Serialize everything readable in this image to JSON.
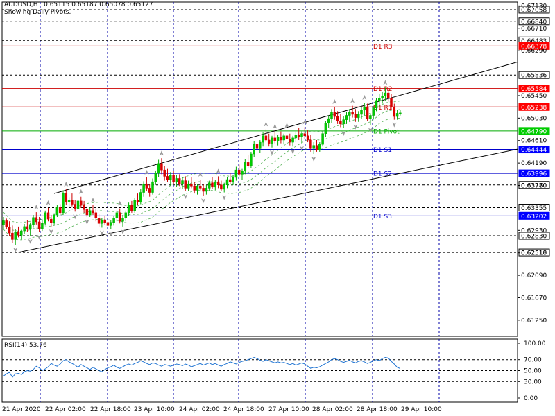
{
  "header": {
    "symbol_line": "AUDUSD,H1  0.65115 0.65187 0.65078 0.65127",
    "subtitle": "Showing Daily Pivots."
  },
  "chart_data": {
    "type": "candlestick",
    "symbol": "AUDUSD",
    "timeframe": "H1",
    "ohlc_current": {
      "open": 0.65115,
      "high": 0.65187,
      "low": 0.65078,
      "close": 0.65127
    },
    "price_ticks": [
      "0.67130",
      "0.66710",
      "0.66290",
      "0.65450",
      "0.65030",
      "0.64610",
      "0.64190",
      "0.63770",
      "0.62930",
      "0.62510",
      "0.62090",
      "0.61670",
      "0.61250"
    ],
    "price_tick_values": [
      0.6713,
      0.6671,
      0.6629,
      0.6545,
      0.6503,
      0.6461,
      0.6419,
      0.6377,
      0.6293,
      0.6251,
      0.6209,
      0.6167,
      0.6125
    ],
    "x_ticks": [
      "21 Apr 2020",
      "22 Apr 02:00",
      "22 Apr 18:00",
      "23 Apr 10:00",
      "24 Apr 02:00",
      "24 Apr 18:00",
      "27 Apr 10:00",
      "28 Apr 02:00",
      "28 Apr 18:00",
      "29 Apr 10:00"
    ],
    "price_levels": [
      {
        "label": "0.67058",
        "price": 0.67058,
        "color": "#000000",
        "style": "dashed",
        "box": "white"
      },
      {
        "label": "0.66840",
        "price": 0.6684,
        "color": "#000000",
        "style": "dashed",
        "box": "white"
      },
      {
        "label": "0.66483",
        "price": 0.66483,
        "color": "#000000",
        "style": "dashed",
        "box": "white"
      },
      {
        "label": "0.66378",
        "price": 0.66378,
        "color": "#cc0000",
        "style": "solid",
        "box": "red",
        "pivot": "D1 R3"
      },
      {
        "label": "0.65836",
        "price": 0.65836,
        "color": "#000000",
        "style": "dashed",
        "box": "white"
      },
      {
        "label": "0.65584",
        "price": 0.65584,
        "color": "#cc0000",
        "style": "solid",
        "box": "red",
        "pivot": "D1 R2"
      },
      {
        "label": "0.65238",
        "price": 0.65238,
        "color": "#cc0000",
        "style": "solid",
        "box": "red",
        "pivot": "D1 R1"
      },
      {
        "label": "0.64790",
        "price": 0.6479,
        "color": "#00aa00",
        "style": "solid",
        "box": "green",
        "pivot": "D1 Pivot"
      },
      {
        "label": "0.64444",
        "price": 0.64444,
        "color": "#0000cc",
        "style": "solid",
        "box": "blue",
        "pivot": "D1 S1"
      },
      {
        "label": "0.63996",
        "price": 0.63996,
        "color": "#0000cc",
        "style": "solid",
        "box": "blue",
        "pivot": "D1 S2"
      },
      {
        "label": "0.63780",
        "price": 0.6378,
        "color": "#000000",
        "style": "dashed",
        "box": "white"
      },
      {
        "label": "0.63355",
        "price": 0.63355,
        "color": "#000000",
        "style": "dashed",
        "box": "white"
      },
      {
        "label": "0.63202",
        "price": 0.63202,
        "color": "#0000cc",
        "style": "solid",
        "box": "blue",
        "pivot": "D1 S3"
      },
      {
        "label": "0.62830",
        "price": 0.6283,
        "color": "#000000",
        "style": "dashed",
        "box": "white"
      },
      {
        "label": "0.62518",
        "price": 0.62518,
        "color": "#000000",
        "style": "dashed",
        "box": "white"
      }
    ],
    "trendlines": [
      {
        "from": {
          "time": "21 Apr 2020 + 2h",
          "price": 0.6252
        },
        "to": {
          "time": "29 Apr 10:00 + 40h",
          "price": 0.6445
        }
      },
      {
        "from": {
          "time": "22 Apr 00:00",
          "price": 0.6362
        },
        "to": {
          "time": "29 Apr 10:00 + 40h",
          "price": 0.6608
        }
      }
    ],
    "candles": [
      [
        0.6303,
        0.6318,
        0.6296,
        0.6311
      ],
      [
        0.6311,
        0.6315,
        0.6295,
        0.6299
      ],
      [
        0.6299,
        0.631,
        0.6282,
        0.6288
      ],
      [
        0.6288,
        0.6302,
        0.627,
        0.6276
      ],
      [
        0.6276,
        0.6296,
        0.6266,
        0.629
      ],
      [
        0.629,
        0.63,
        0.628,
        0.6284
      ],
      [
        0.6284,
        0.6294,
        0.6276,
        0.6292
      ],
      [
        0.6292,
        0.6305,
        0.6286,
        0.63
      ],
      [
        0.63,
        0.6312,
        0.629,
        0.6296
      ],
      [
        0.6296,
        0.6308,
        0.6282,
        0.6304
      ],
      [
        0.6304,
        0.6322,
        0.6298,
        0.6317
      ],
      [
        0.6317,
        0.6327,
        0.6304,
        0.6309
      ],
      [
        0.6309,
        0.6318,
        0.629,
        0.6296
      ],
      [
        0.6296,
        0.6312,
        0.6292,
        0.6306
      ],
      [
        0.6306,
        0.633,
        0.6302,
        0.6326
      ],
      [
        0.6326,
        0.6335,
        0.631,
        0.6314
      ],
      [
        0.6314,
        0.6322,
        0.63,
        0.6308
      ],
      [
        0.6308,
        0.6325,
        0.6304,
        0.6322
      ],
      [
        0.6322,
        0.634,
        0.6318,
        0.6336
      ],
      [
        0.6336,
        0.6342,
        0.6322,
        0.6326
      ],
      [
        0.6326,
        0.6368,
        0.6322,
        0.6362
      ],
      [
        0.6362,
        0.637,
        0.634,
        0.6346
      ],
      [
        0.6346,
        0.6355,
        0.6336,
        0.635
      ],
      [
        0.635,
        0.6362,
        0.6338,
        0.6342
      ],
      [
        0.6342,
        0.635,
        0.6328,
        0.6334
      ],
      [
        0.6334,
        0.6352,
        0.633,
        0.6348
      ],
      [
        0.6348,
        0.6356,
        0.6335,
        0.634
      ],
      [
        0.634,
        0.6348,
        0.6326,
        0.6332
      ],
      [
        0.6332,
        0.6338,
        0.6318,
        0.6322
      ],
      [
        0.6322,
        0.6336,
        0.6318,
        0.633
      ],
      [
        0.633,
        0.634,
        0.6322,
        0.6326
      ],
      [
        0.6326,
        0.6334,
        0.631,
        0.6316
      ],
      [
        0.6316,
        0.6324,
        0.63,
        0.6306
      ],
      [
        0.6306,
        0.6316,
        0.6298,
        0.6312
      ],
      [
        0.6312,
        0.632,
        0.6304,
        0.6308
      ],
      [
        0.6308,
        0.6316,
        0.6298,
        0.6302
      ],
      [
        0.6302,
        0.6312,
        0.6296,
        0.6308
      ],
      [
        0.6308,
        0.632,
        0.6302,
        0.6316
      ],
      [
        0.6316,
        0.633,
        0.631,
        0.6326
      ],
      [
        0.6326,
        0.6334,
        0.6306,
        0.631
      ],
      [
        0.631,
        0.6322,
        0.63,
        0.6316
      ],
      [
        0.6316,
        0.633,
        0.631,
        0.6326
      ],
      [
        0.6326,
        0.6345,
        0.632,
        0.634
      ],
      [
        0.634,
        0.6348,
        0.6326,
        0.633
      ],
      [
        0.633,
        0.6354,
        0.6326,
        0.635
      ],
      [
        0.635,
        0.6362,
        0.634,
        0.6346
      ],
      [
        0.6346,
        0.637,
        0.6342,
        0.6364
      ],
      [
        0.6364,
        0.6385,
        0.6356,
        0.638
      ],
      [
        0.638,
        0.6392,
        0.6366,
        0.6372
      ],
      [
        0.6372,
        0.638,
        0.6356,
        0.6364
      ],
      [
        0.6364,
        0.639,
        0.636,
        0.6384
      ],
      [
        0.6384,
        0.6405,
        0.6378,
        0.64
      ],
      [
        0.64,
        0.6425,
        0.6392,
        0.6418
      ],
      [
        0.6418,
        0.6428,
        0.6398,
        0.6406
      ],
      [
        0.6406,
        0.6414,
        0.6386,
        0.6394
      ],
      [
        0.6394,
        0.6408,
        0.6384,
        0.6388
      ],
      [
        0.6388,
        0.6402,
        0.6376,
        0.6396
      ],
      [
        0.6396,
        0.6404,
        0.638,
        0.6384
      ],
      [
        0.6384,
        0.6396,
        0.6374,
        0.639
      ],
      [
        0.639,
        0.6398,
        0.6376,
        0.638
      ],
      [
        0.638,
        0.6392,
        0.637,
        0.6386
      ],
      [
        0.6386,
        0.6394,
        0.6366,
        0.6372
      ],
      [
        0.6372,
        0.6386,
        0.6366,
        0.638
      ],
      [
        0.638,
        0.6392,
        0.6372,
        0.6376
      ],
      [
        0.6376,
        0.6384,
        0.6362,
        0.6368
      ],
      [
        0.6368,
        0.638,
        0.636,
        0.6376
      ],
      [
        0.6376,
        0.6388,
        0.6368,
        0.6372
      ],
      [
        0.6372,
        0.638,
        0.6358,
        0.6366
      ],
      [
        0.6366,
        0.6378,
        0.636,
        0.6372
      ],
      [
        0.6372,
        0.6386,
        0.6366,
        0.6382
      ],
      [
        0.6382,
        0.6392,
        0.637,
        0.6374
      ],
      [
        0.6374,
        0.6388,
        0.6368,
        0.6384
      ],
      [
        0.6384,
        0.6394,
        0.6372,
        0.6378
      ],
      [
        0.6378,
        0.6386,
        0.6366,
        0.637
      ],
      [
        0.637,
        0.6382,
        0.6364,
        0.6378
      ],
      [
        0.6378,
        0.6392,
        0.6372,
        0.6388
      ],
      [
        0.6388,
        0.64,
        0.638,
        0.6384
      ],
      [
        0.6384,
        0.6396,
        0.6378,
        0.6392
      ],
      [
        0.6392,
        0.6412,
        0.6386,
        0.6406
      ],
      [
        0.6406,
        0.6416,
        0.6394,
        0.6398
      ],
      [
        0.6398,
        0.6408,
        0.6388,
        0.6404
      ],
      [
        0.6404,
        0.6426,
        0.6398,
        0.642
      ],
      [
        0.642,
        0.6434,
        0.641,
        0.6414
      ],
      [
        0.6414,
        0.644,
        0.641,
        0.6436
      ],
      [
        0.6436,
        0.646,
        0.643,
        0.6454
      ],
      [
        0.6454,
        0.6466,
        0.644,
        0.6446
      ],
      [
        0.6446,
        0.6462,
        0.6438,
        0.6458
      ],
      [
        0.6458,
        0.6476,
        0.645,
        0.647
      ],
      [
        0.647,
        0.6482,
        0.6458,
        0.6462
      ],
      [
        0.6462,
        0.6474,
        0.645,
        0.6456
      ],
      [
        0.6456,
        0.647,
        0.6448,
        0.6466
      ],
      [
        0.6466,
        0.6478,
        0.6456,
        0.646
      ],
      [
        0.646,
        0.6472,
        0.6452,
        0.6468
      ],
      [
        0.6468,
        0.6478,
        0.6456,
        0.6462
      ],
      [
        0.6462,
        0.6474,
        0.6454,
        0.647
      ],
      [
        0.647,
        0.648,
        0.6458,
        0.6464
      ],
      [
        0.6464,
        0.6474,
        0.6452,
        0.6458
      ],
      [
        0.6458,
        0.647,
        0.645,
        0.6466
      ],
      [
        0.6466,
        0.6478,
        0.6458,
        0.6472
      ],
      [
        0.6472,
        0.6484,
        0.6462,
        0.6468
      ],
      [
        0.6468,
        0.6478,
        0.6456,
        0.6474
      ],
      [
        0.6474,
        0.6486,
        0.6464,
        0.647
      ],
      [
        0.647,
        0.648,
        0.6458,
        0.6462
      ],
      [
        0.6462,
        0.6472,
        0.644,
        0.6446
      ],
      [
        0.6446,
        0.6458,
        0.6436,
        0.6452
      ],
      [
        0.6452,
        0.6462,
        0.644,
        0.6444
      ],
      [
        0.6444,
        0.6458,
        0.644,
        0.6454
      ],
      [
        0.6454,
        0.6478,
        0.645,
        0.6474
      ],
      [
        0.6474,
        0.6498,
        0.6468,
        0.6494
      ],
      [
        0.6494,
        0.6508,
        0.6484,
        0.6502
      ],
      [
        0.6502,
        0.652,
        0.6494,
        0.6514
      ],
      [
        0.6514,
        0.6524,
        0.65,
        0.6506
      ],
      [
        0.6506,
        0.6516,
        0.6492,
        0.6498
      ],
      [
        0.6498,
        0.651,
        0.6486,
        0.6492
      ],
      [
        0.6492,
        0.6506,
        0.6484,
        0.65
      ],
      [
        0.65,
        0.6514,
        0.6492,
        0.6508
      ],
      [
        0.6508,
        0.652,
        0.6498,
        0.6514
      ],
      [
        0.6514,
        0.6526,
        0.6504,
        0.651
      ],
      [
        0.651,
        0.652,
        0.6496,
        0.6504
      ],
      [
        0.6504,
        0.6516,
        0.6496,
        0.651
      ],
      [
        0.651,
        0.6524,
        0.6502,
        0.6518
      ],
      [
        0.6518,
        0.6532,
        0.6508,
        0.6524
      ],
      [
        0.6524,
        0.653,
        0.6498,
        0.6502
      ],
      [
        0.6502,
        0.6512,
        0.649,
        0.6508
      ],
      [
        0.6508,
        0.6526,
        0.6502,
        0.6522
      ],
      [
        0.6522,
        0.654,
        0.6516,
        0.6536
      ],
      [
        0.6536,
        0.6548,
        0.6526,
        0.654
      ],
      [
        0.654,
        0.6552,
        0.653,
        0.6544
      ],
      [
        0.6544,
        0.656,
        0.6536,
        0.655
      ],
      [
        0.655,
        0.6556,
        0.6534,
        0.654
      ],
      [
        0.654,
        0.6548,
        0.6518,
        0.6524
      ],
      [
        0.6524,
        0.653,
        0.65,
        0.6506
      ],
      [
        0.6506,
        0.6518,
        0.65,
        0.6512
      ],
      [
        0.65115,
        0.65187,
        0.65078,
        0.65127
      ]
    ],
    "rsi": {
      "label": "RSI(14) 53.76",
      "period": 14,
      "last": 53.76,
      "ticks": [
        "100.00",
        "70.00",
        "50.00",
        "30.00",
        "0.00"
      ],
      "tick_values": [
        100,
        70,
        50,
        30,
        0
      ],
      "values": [
        40,
        44,
        47,
        38,
        44,
        45,
        43,
        48,
        50,
        49,
        52,
        58,
        55,
        50,
        53,
        57,
        63,
        60,
        58,
        62,
        68,
        70,
        66,
        63,
        60,
        56,
        61,
        58,
        55,
        52,
        56,
        53,
        50,
        48,
        52,
        55,
        57,
        60,
        56,
        54,
        57,
        60,
        62,
        60,
        63,
        65,
        68,
        66,
        63,
        61,
        64,
        63,
        60,
        58,
        61,
        60,
        58,
        60,
        62,
        61,
        59,
        62,
        60,
        57,
        59,
        61,
        63,
        60,
        62,
        64,
        61,
        63,
        60,
        58,
        61,
        63,
        66,
        64,
        62,
        65,
        67,
        68,
        70,
        72,
        74,
        72,
        69,
        67,
        70,
        68,
        66,
        64,
        66,
        64,
        65,
        63,
        61,
        63,
        60,
        62,
        64,
        62,
        58,
        54,
        56,
        55,
        57,
        60,
        63,
        66,
        70,
        72,
        70,
        67,
        65,
        67,
        69,
        66,
        64,
        67,
        68,
        66,
        63,
        65,
        68,
        70,
        68,
        72,
        74,
        73,
        67,
        62,
        56,
        53.76
      ]
    },
    "pivots_dashed": true
  }
}
